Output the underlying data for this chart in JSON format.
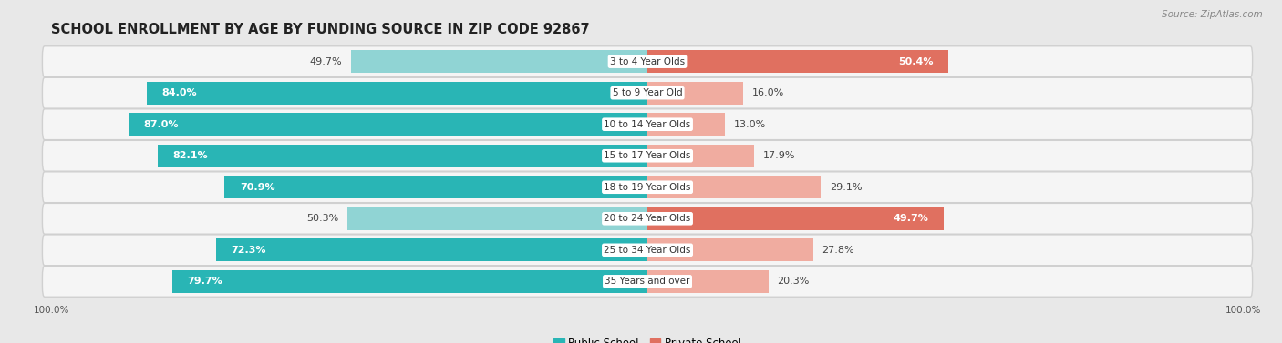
{
  "title": "SCHOOL ENROLLMENT BY AGE BY FUNDING SOURCE IN ZIP CODE 92867",
  "source": "Source: ZipAtlas.com",
  "categories": [
    "3 to 4 Year Olds",
    "5 to 9 Year Old",
    "10 to 14 Year Olds",
    "15 to 17 Year Olds",
    "18 to 19 Year Olds",
    "20 to 24 Year Olds",
    "25 to 34 Year Olds",
    "35 Years and over"
  ],
  "public_values": [
    49.7,
    84.0,
    87.0,
    82.1,
    70.9,
    50.3,
    72.3,
    79.7
  ],
  "private_values": [
    50.4,
    16.0,
    13.0,
    17.9,
    29.1,
    49.7,
    27.8,
    20.3
  ],
  "public_color_dark": "#29b5b5",
  "public_color_light": "#90d4d4",
  "private_color_dark": "#e07060",
  "private_color_light": "#f0aca0",
  "bg_color": "#e8e8e8",
  "row_bg_color": "#f5f5f5",
  "row_border_color": "#d0d0d0",
  "title_fontsize": 10.5,
  "source_fontsize": 7.5,
  "label_fontsize": 8,
  "cat_fontsize": 7.5,
  "legend_fontsize": 8.5,
  "axis_label_fontsize": 7.5,
  "dark_threshold_public": 65,
  "dark_threshold_private": 40
}
